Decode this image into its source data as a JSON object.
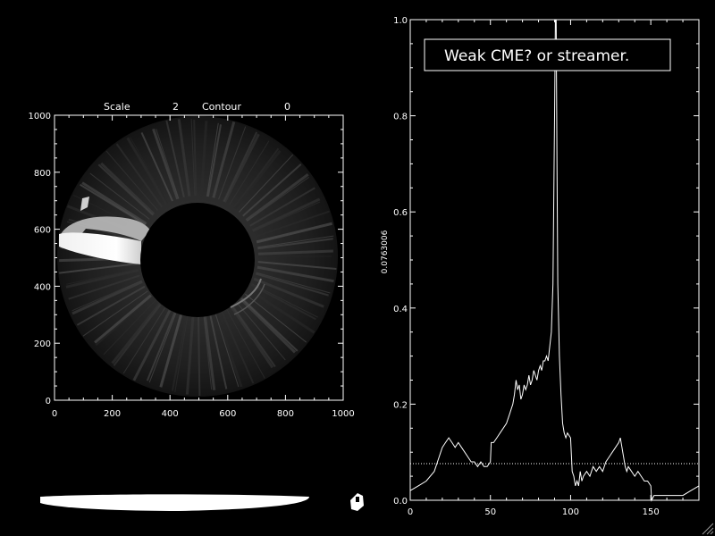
{
  "left_panel": {
    "header": {
      "scale_label": "Scale",
      "scale_value": "2",
      "contour_label": "Contour",
      "contour_value": "0"
    },
    "x_ticks": [
      "0",
      "200",
      "400",
      "600",
      "800",
      "1000"
    ],
    "y_ticks": [
      "0",
      "200",
      "400",
      "600",
      "800",
      "1000"
    ]
  },
  "right_panel": {
    "annotation": "Weak CME? or streamer.",
    "ylabel": "0.0763006"
  },
  "colors": {
    "background": "#000000",
    "foreground": "#ffffff"
  },
  "chart_data": [
    {
      "type": "heatmap",
      "title": "",
      "xlim": [
        0,
        1000
      ],
      "ylim": [
        0,
        1000
      ],
      "x_ticks": [
        0,
        200,
        400,
        600,
        800,
        1000
      ],
      "y_ticks": [
        0,
        200,
        400,
        600,
        800,
        1000
      ],
      "grid": false
    },
    {
      "type": "line",
      "title": "",
      "xlabel": "",
      "ylabel": "0.0763006",
      "xlim": [
        0,
        180
      ],
      "ylim": [
        0,
        1.0
      ],
      "x_ticks": [
        0,
        50,
        100,
        150
      ],
      "y_ticks": [
        0.0,
        0.2,
        0.4,
        0.6,
        0.8,
        1.0
      ],
      "reference_line": 0.0763006,
      "grid": false,
      "series": [
        {
          "x": [
            0,
            5,
            10,
            15,
            18,
            20,
            22,
            24,
            26,
            28,
            30,
            32,
            34,
            36,
            38,
            40,
            42,
            44,
            46,
            48,
            50,
            50.5,
            52,
            54,
            56,
            58,
            60,
            62,
            63,
            64,
            65,
            66,
            67,
            68,
            69,
            70,
            71,
            72,
            73,
            74,
            75,
            76,
            77,
            78,
            79,
            80,
            81,
            82,
            83,
            84,
            85,
            86,
            87,
            88,
            89,
            90,
            90.5,
            91,
            91.5,
            92,
            93,
            94,
            95,
            96,
            97,
            98,
            100,
            101,
            102,
            103,
            104,
            105,
            106,
            107,
            108,
            110,
            112,
            114,
            116,
            118,
            120,
            122,
            124,
            126,
            128,
            130,
            131,
            132,
            133,
            134,
            135,
            136,
            138,
            140,
            142,
            144,
            146,
            148,
            150,
            150.5,
            152,
            155,
            160,
            165,
            170,
            175,
            180
          ],
          "y": [
            0.02,
            0.03,
            0.04,
            0.06,
            0.09,
            0.11,
            0.12,
            0.13,
            0.12,
            0.11,
            0.12,
            0.11,
            0.1,
            0.09,
            0.08,
            0.08,
            0.07,
            0.08,
            0.07,
            0.07,
            0.08,
            0.12,
            0.12,
            0.13,
            0.14,
            0.15,
            0.16,
            0.18,
            0.19,
            0.2,
            0.22,
            0.25,
            0.23,
            0.24,
            0.21,
            0.22,
            0.24,
            0.23,
            0.24,
            0.26,
            0.24,
            0.25,
            0.27,
            0.26,
            0.25,
            0.27,
            0.28,
            0.27,
            0.29,
            0.29,
            0.3,
            0.29,
            0.32,
            0.35,
            0.45,
            0.8,
            1.0,
            1.0,
            0.7,
            0.45,
            0.3,
            0.22,
            0.16,
            0.14,
            0.13,
            0.14,
            0.13,
            0.06,
            0.05,
            0.03,
            0.04,
            0.03,
            0.06,
            0.04,
            0.05,
            0.06,
            0.05,
            0.07,
            0.06,
            0.07,
            0.06,
            0.08,
            0.09,
            0.1,
            0.11,
            0.12,
            0.13,
            0.11,
            0.09,
            0.07,
            0.06,
            0.07,
            0.06,
            0.05,
            0.06,
            0.05,
            0.04,
            0.04,
            0.03,
            0.0,
            0.01,
            0.01,
            0.01,
            0.01,
            0.01,
            0.02,
            0.03
          ]
        }
      ]
    }
  ]
}
